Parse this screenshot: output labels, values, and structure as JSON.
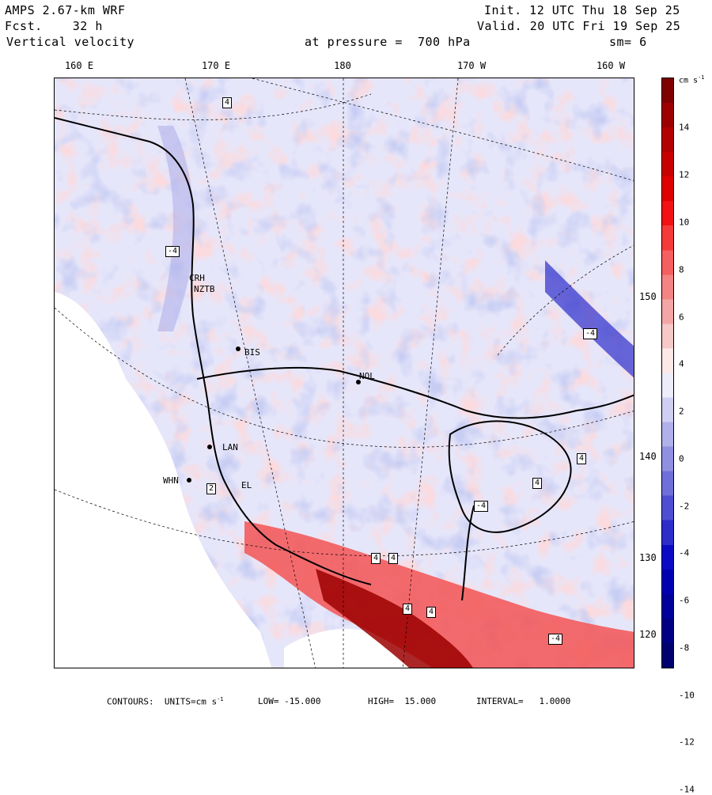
{
  "header": {
    "model": "AMPS 2.67-km WRF",
    "fcst": "Fcst.    32 h",
    "field": "Vertical velocity",
    "init": "Init. 12 UTC Thu 18 Sep 25",
    "valid": "Valid. 20 UTC Fri 19 Sep 25",
    "pressure": "at pressure =  700 hPa",
    "smooth": "sm= 6"
  },
  "lon_labels": [
    "160 E",
    "170 E",
    "180",
    "170 W",
    "160 W"
  ],
  "lat_labels": [
    "150 W",
    "140 W",
    "130 W",
    "120 W"
  ],
  "colorbar": {
    "unit": "cm s",
    "unit_exp": "-1",
    "ticks": [
      "14",
      "12",
      "10",
      "8",
      "6",
      "4",
      "2",
      "0",
      "-2",
      "-4",
      "-6",
      "-8",
      "-10",
      "-12",
      "-14"
    ],
    "colors_pos": [
      "#800000",
      "#9c0000",
      "#b30000",
      "#c90000",
      "#df0000",
      "#f21212",
      "#f53a3a",
      "#f55f5f",
      "#f48383",
      "#f4a6a6",
      "#f6c8c8",
      "#fde8e8"
    ],
    "colors_neg": [
      "#ececfb",
      "#cfcff3",
      "#b0b0ea",
      "#9090e2",
      "#6f6fda",
      "#4e4ed2",
      "#2d2dca",
      "#0b0bc4",
      "#0000b0",
      "#00009a",
      "#000084",
      "#00006e"
    ]
  },
  "stations": [
    "CRH",
    "NZTB",
    "BIS",
    "NOL",
    "LAN",
    "WHN",
    "EL"
  ],
  "contour_boxes": [
    "4",
    "4",
    "-4",
    "-4",
    "4",
    "-4",
    "4",
    "4",
    "4",
    "4",
    "-4",
    "2"
  ],
  "footer": {
    "contours": "CONTOURS:  UNITS=cm s",
    "unit_exp": "-1",
    "low": "LOW= -15.000",
    "high": "HIGH=  15.000",
    "interval": "INTERVAL=   1.0000"
  }
}
